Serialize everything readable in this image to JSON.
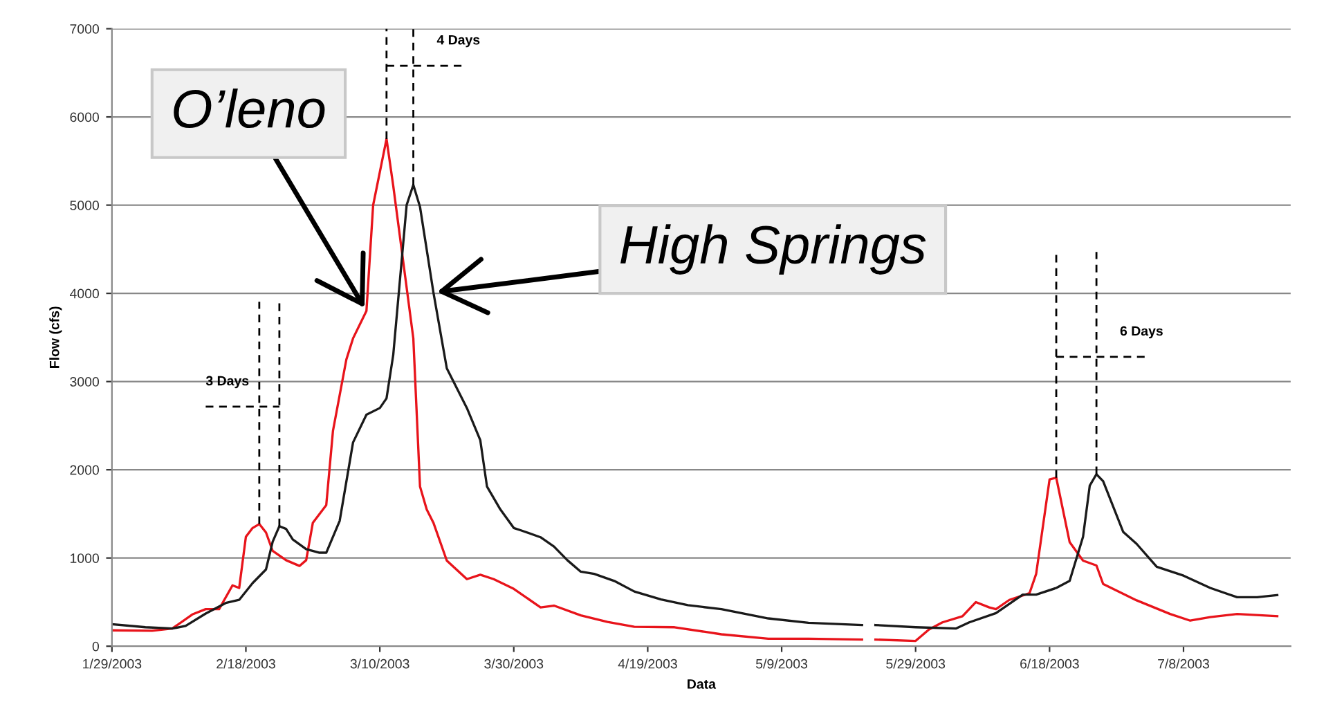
{
  "chart_data": {
    "type": "line",
    "xlabel": "Data",
    "ylabel": "Flow (cfs)",
    "xlim": [
      "2003-01-29",
      "2003-07-24"
    ],
    "xticks": [
      {
        "value": "2003-01-29",
        "label": "1/29/2003"
      },
      {
        "value": "2003-02-18",
        "label": "2/18/2003"
      },
      {
        "value": "2003-03-10",
        "label": "3/10/2003"
      },
      {
        "value": "2003-03-30",
        "label": "3/30/2003"
      },
      {
        "value": "2003-04-19",
        "label": "4/19/2003"
      },
      {
        "value": "2003-05-09",
        "label": "5/9/2003"
      },
      {
        "value": "2003-05-29",
        "label": "5/29/2003"
      },
      {
        "value": "2003-06-18",
        "label": "6/18/2003"
      },
      {
        "value": "2003-07-08",
        "label": "7/8/2003"
      }
    ],
    "ylim": [
      0,
      7000
    ],
    "yticks": [
      0,
      1000,
      2000,
      3000,
      4000,
      5000,
      6000,
      7000
    ],
    "grid": "y",
    "legend": false,
    "marker": "none",
    "line_style": "solid",
    "series": [
      {
        "color": "#e8141b",
        "x": [
          "2003-01-29",
          "2003-02-04",
          "2003-02-07",
          "2003-02-10",
          "2003-02-12",
          "2003-02-14",
          "2003-02-16",
          "2003-02-17",
          "2003-02-18",
          "2003-02-19",
          "2003-02-20",
          "2003-02-21",
          "2003-02-22",
          "2003-02-24",
          "2003-02-26",
          "2003-02-27",
          "2003-02-28",
          "2003-03-02",
          "2003-03-03",
          "2003-03-05",
          "2003-03-06",
          "2003-03-08",
          "2003-03-09",
          "2003-03-11",
          "2003-03-12",
          "2003-03-15",
          "2003-03-16",
          "2003-03-17",
          "2003-03-18",
          "2003-03-20",
          "2003-03-23",
          "2003-03-25",
          "2003-03-27",
          "2003-03-30",
          "2003-04-03",
          "2003-04-05",
          "2003-04-09",
          "2003-04-13",
          "2003-04-17",
          "2003-04-23",
          "2003-04-30",
          "2003-05-07",
          "2003-05-13",
          "2003-05-21",
          "2003-05-22",
          "2003-05-23",
          "2003-05-29",
          "2003-05-31",
          "2003-06-02",
          "2003-06-05",
          "2003-06-07",
          "2003-06-09",
          "2003-06-10",
          "2003-06-12",
          "2003-06-15",
          "2003-06-16",
          "2003-06-18",
          "2003-06-19",
          "2003-06-21",
          "2003-06-23",
          "2003-06-25",
          "2003-06-26",
          "2003-07-01",
          "2003-07-06",
          "2003-07-09",
          "2003-07-12",
          "2003-07-16",
          "2003-07-22"
        ],
        "values": [
          180,
          175,
          200,
          360,
          420,
          420,
          690,
          660,
          1240,
          1340,
          1385,
          1290,
          1080,
          975,
          910,
          975,
          1400,
          1600,
          2440,
          3250,
          3490,
          3800,
          5000,
          5750,
          5220,
          3490,
          1810,
          1550,
          1400,
          970,
          760,
          810,
          760,
          650,
          440,
          460,
          350,
          275,
          220,
          215,
          135,
          85,
          85,
          75,
          null,
          75,
          60,
          190,
          270,
          340,
          500,
          440,
          420,
          525,
          600,
          820,
          1890,
          1910,
          1180,
          970,
          915,
          705,
          520,
          365,
          290,
          330,
          365,
          340
        ]
      },
      {
        "color": "#1a1a1a",
        "x": [
          "2003-01-29",
          "2003-02-03",
          "2003-02-07",
          "2003-02-09",
          "2003-02-12",
          "2003-02-15",
          "2003-02-17",
          "2003-02-19",
          "2003-02-21",
          "2003-02-22",
          "2003-02-23",
          "2003-02-24",
          "2003-02-25",
          "2003-02-27",
          "2003-03-01",
          "2003-03-02",
          "2003-03-04",
          "2003-03-06",
          "2003-03-08",
          "2003-03-10",
          "2003-03-11",
          "2003-03-12",
          "2003-03-14",
          "2003-03-15",
          "2003-03-16",
          "2003-03-18",
          "2003-03-20",
          "2003-03-23",
          "2003-03-25",
          "2003-03-26",
          "2003-03-28",
          "2003-03-30",
          "2003-03-31",
          "2003-04-03",
          "2003-04-05",
          "2003-04-07",
          "2003-04-09",
          "2003-04-11",
          "2003-04-14",
          "2003-04-17",
          "2003-04-21",
          "2003-04-25",
          "2003-04-30",
          "2003-05-07",
          "2003-05-13",
          "2003-05-21",
          "2003-05-22",
          "2003-05-23",
          "2003-05-29",
          "2003-06-04",
          "2003-06-06",
          "2003-06-10",
          "2003-06-14",
          "2003-06-16",
          "2003-06-19",
          "2003-06-21",
          "2003-06-23",
          "2003-06-24",
          "2003-06-25",
          "2003-06-26",
          "2003-06-29",
          "2003-07-01",
          "2003-07-04",
          "2003-07-08",
          "2003-07-12",
          "2003-07-16",
          "2003-07-19",
          "2003-07-22"
        ],
        "values": [
          250,
          215,
          200,
          230,
          370,
          490,
          525,
          715,
          870,
          1185,
          1360,
          1330,
          1210,
          1100,
          1060,
          1060,
          1420,
          2310,
          2625,
          2700,
          2810,
          3300,
          5000,
          5230,
          4980,
          4010,
          3150,
          2700,
          2335,
          1810,
          1550,
          1340,
          1315,
          1235,
          1130,
          975,
          845,
          820,
          740,
          620,
          530,
          465,
          420,
          315,
          265,
          240,
          null,
          240,
          215,
          200,
          270,
          375,
          585,
          585,
          660,
          740,
          1240,
          1820,
          1950,
          1870,
          1295,
          1160,
          900,
          800,
          660,
          555,
          555,
          580
        ]
      }
    ],
    "annotations": [
      {
        "text": "O’leno",
        "x": "2003-03-08",
        "y": 3800
      },
      {
        "text": "High Springs",
        "x": "2003-03-18",
        "y": 4010
      },
      "3 Days",
      "4 Days",
      "6 Days"
    ]
  }
}
